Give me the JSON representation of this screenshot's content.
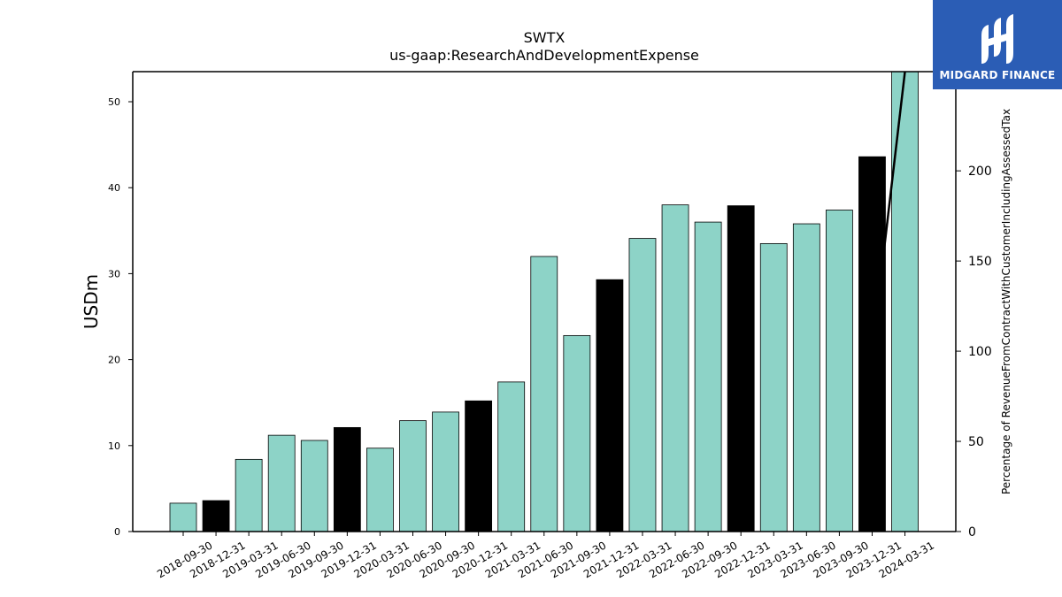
{
  "colors": {
    "bar_default": "#8dd3c7",
    "bar_highlight": "#000000",
    "line": "#000000",
    "logo_bg": "#2b5db5",
    "logo_text": "#ffffff"
  },
  "logo": {
    "text": "MIDGARD FINANCE",
    "icon": "midgard-mark-icon"
  },
  "chart_data": {
    "type": "bar",
    "title": "SWTX",
    "subtitle": "us-gaap:ResearchAndDevelopmentExpense",
    "ylabel": "USDm",
    "ylabel_right": "Percentage of RevenueFromContractWithCustomerIncludingAssessedTax",
    "ylim": [
      0,
      53.5
    ],
    "ylim_right": [
      0,
      255
    ],
    "yticks": [
      0,
      10,
      20,
      30,
      40,
      50
    ],
    "yticks_right": [
      0,
      50,
      100,
      150,
      200
    ],
    "grid": false,
    "categories": [
      "2018-09-30",
      "2018-12-31",
      "2019-03-31",
      "2019-06-30",
      "2019-09-30",
      "2019-12-31",
      "2020-03-31",
      "2020-06-30",
      "2020-09-30",
      "2020-12-31",
      "2021-03-31",
      "2021-06-30",
      "2021-09-30",
      "2021-12-31",
      "2022-03-31",
      "2022-06-30",
      "2022-09-30",
      "2022-12-31",
      "2023-03-31",
      "2023-06-30",
      "2023-09-30",
      "2023-12-31",
      "2024-03-31"
    ],
    "values": [
      3.3,
      3.6,
      8.4,
      11.2,
      10.6,
      12.1,
      9.7,
      12.9,
      13.9,
      15.2,
      17.4,
      32.0,
      22.8,
      29.3,
      34.1,
      38.0,
      36.0,
      37.9,
      33.5,
      35.8,
      37.4,
      43.6,
      53.5
    ],
    "highlight": [
      false,
      true,
      false,
      false,
      false,
      true,
      false,
      false,
      false,
      true,
      false,
      false,
      false,
      true,
      false,
      false,
      false,
      true,
      false,
      false,
      false,
      true,
      false
    ],
    "series_right": {
      "x_categories": [
        "2023-12-31",
        "2024-03-31"
      ],
      "values": [
        100,
        255
      ]
    }
  }
}
